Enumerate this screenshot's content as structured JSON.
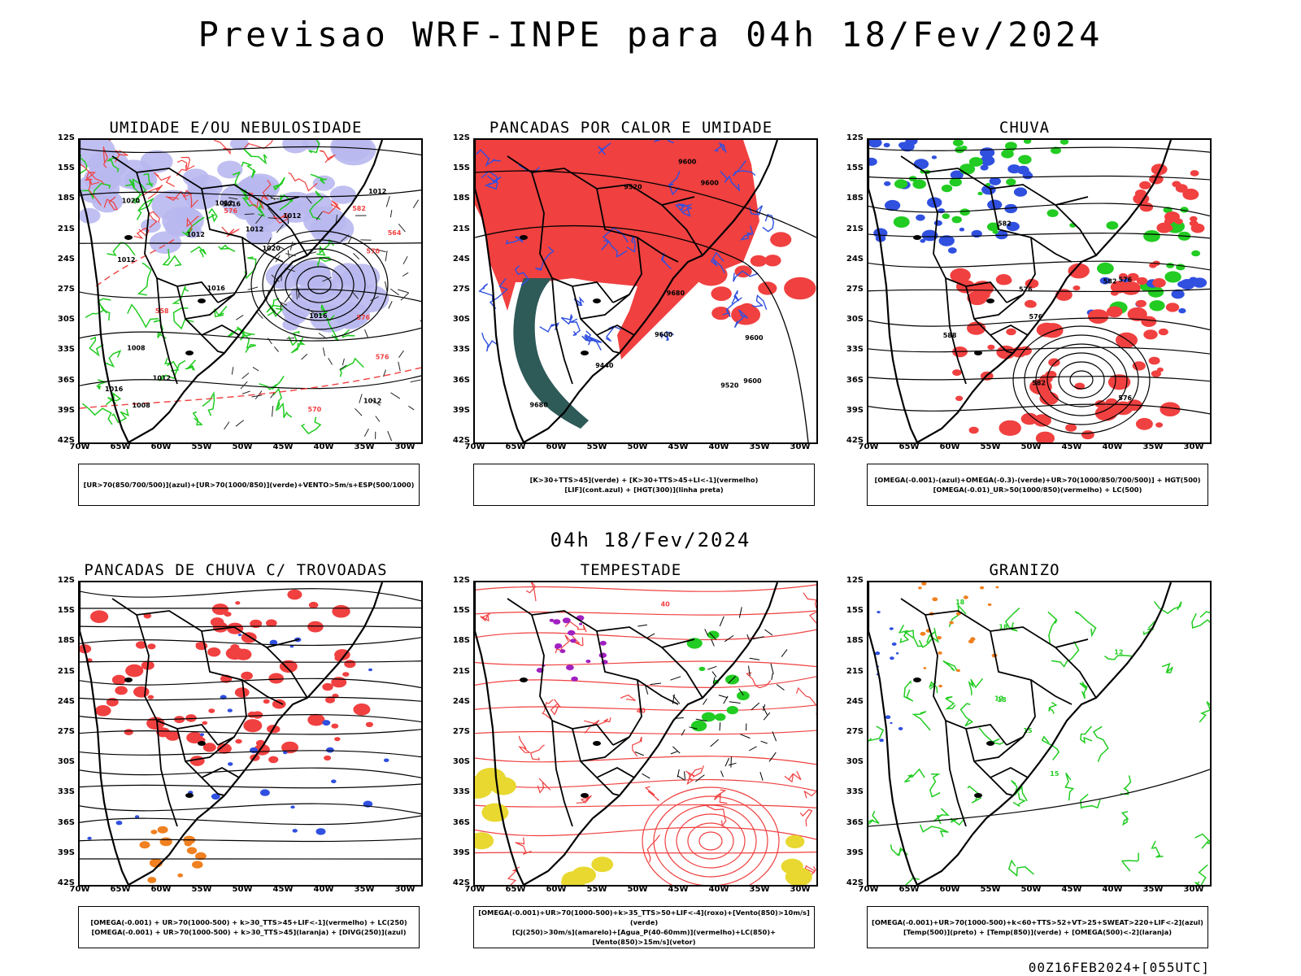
{
  "title": "Previsao WRF-INPE  para 04h 18/Fev/2024",
  "mid_title": "04h 18/Fev/2024",
  "footer": "00Z16FEB2024+[055UTC]",
  "lat_ticks": [
    "12S",
    "15S",
    "18S",
    "21S",
    "24S",
    "27S",
    "30S",
    "33S",
    "36S",
    "39S",
    "42S"
  ],
  "lon_ticks": [
    "70W",
    "65W",
    "60W",
    "55W",
    "50W",
    "45W",
    "40W",
    "35W",
    "30W"
  ],
  "colors": {
    "blue_shade": "#b8b8f0",
    "green": "#22cc22",
    "red": "#f04040",
    "dark_teal": "#2e5a58",
    "blue_line": "#3050e0",
    "yellow": "#e8d830",
    "orange": "#f08020",
    "purple": "#a020c0"
  },
  "panels": [
    {
      "title": "UMIDADE E/OU NEBULOSIDADE",
      "legend": [
        "[UR>70(850/700/500)](azul)+[UR>70(1000/850)](verde)+VENTO>5m/s+ESP(500/1000)"
      ],
      "labels": [
        "1012",
        "1012",
        "1012",
        "1016",
        "1012",
        "1008",
        "1012",
        "1012",
        "1008",
        "1012",
        "1016",
        "1012",
        "1016",
        "1020",
        "1016",
        "1020",
        "576",
        "576",
        "582",
        "570",
        "576",
        "570",
        "564",
        "558"
      ]
    },
    {
      "title": "PANCADAS POR CALOR E UMIDADE",
      "legend": [
        "[K>30+TTS>45](verde) + [K>30+TTS>45+LI<-1](vermelho)",
        "[LIF](cont.azul) + [HGT(300)](linha preta)"
      ],
      "labels": [
        "9680",
        "9600",
        "9680",
        "9600",
        "9520",
        "9600",
        "9600",
        "9600",
        "9520",
        "9440"
      ]
    },
    {
      "title": "CHUVA",
      "legend": [
        "[OMEGA(-0.001)-(azul)+OMEGA(-0.3)-(verde)+UR>70(1000/850/700/500)] + HGT(500)",
        "[OMEGA(-0.01)_UR>50(1000/850)(vermelho) + LC(500)"
      ],
      "labels": [
        "582",
        "576",
        "576",
        "576",
        "582",
        "582",
        "576",
        "588"
      ]
    },
    {
      "title": "PANCADAS DE CHUVA C/ TROVOADAS",
      "legend": [
        "[OMEGA(-0.001) + UR>70(1000-500) + k>30_TTS>45+LIF<-1](vermelho) + LC(250)",
        "[OMEGA(-0.001) + UR>70(1000-500) + k>30_TTS>45](laranja) + [DIVG(250)](azul)"
      ],
      "labels": []
    },
    {
      "title": "TEMPESTADE",
      "legend": [
        "[OMEGA(-0.001)+UR>70(1000-500)+k>35_TTS>50+LIF<-4](roxo)+[Vento(850)>10m/s](verde)",
        "[CJ(250)>30m/s](amarelo)+[Agua_P(40-60mm)](vermelho)+LC(850)+[Vento(850)>15m/s](vetor)"
      ],
      "labels": [
        "40",
        "40"
      ]
    },
    {
      "title": "GRANIZO",
      "legend": [
        "[OMEGA(-0.001)+UR>70(1000-500)+k<60+TTS>52+VT>25+SWEAT>220+LIF<-2](azul)",
        "[Temp(500)](preto) + [Temp(850)](verde) + [OMEGA(500)<-2](laranja)"
      ],
      "labels": [
        "12",
        "15",
        "18",
        "18",
        "18",
        "15",
        "12"
      ]
    }
  ]
}
